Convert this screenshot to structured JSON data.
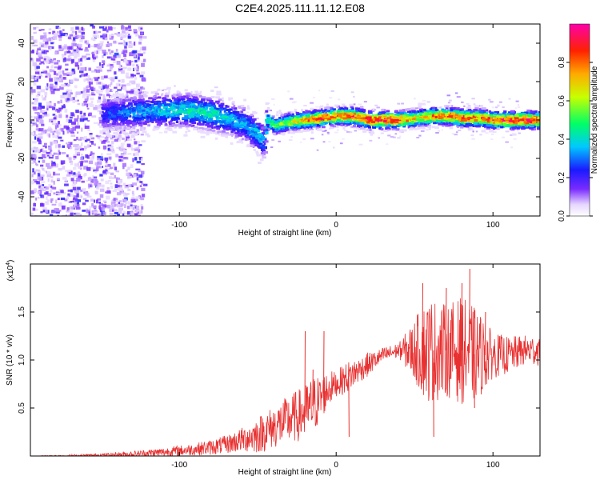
{
  "page": {
    "title": "C2E4.2025.111.11.12.E08"
  },
  "chart_data": [
    {
      "type": "heatmap",
      "xlabel": "Height of straight line (km)",
      "ylabel": "Frequency (Hz)",
      "xlim": [
        -195,
        130
      ],
      "ylim": [
        -50,
        50
      ],
      "xticks": [
        -100,
        0,
        100
      ],
      "yticks": [
        -40,
        -20,
        0,
        20,
        40
      ],
      "xtick_labels": [
        "-100",
        "0",
        "100"
      ],
      "ytick_labels": [
        "-40",
        "-20",
        "0",
        "20",
        "40"
      ],
      "colorbar": {
        "label": "Normalized spectral amplitude",
        "range": [
          0.0,
          1.0
        ],
        "ticks": [
          0.0,
          0.2,
          0.4,
          0.6,
          0.8
        ],
        "tick_labels": [
          "0.0",
          "0.2",
          "0.4",
          "0.6",
          "0.8"
        ],
        "colormap": "rainbow (white-lavender-purple-blue-cyan-green-yellow-orange-red-magenta)"
      },
      "dominant_ridge": {
        "x": [
          -150,
          -130,
          -110,
          -95,
          -80,
          -70,
          -60,
          -50,
          -47,
          -45,
          -40,
          -35,
          -30,
          -20,
          -10,
          0,
          10,
          20,
          30,
          40,
          50,
          60,
          70,
          80,
          90,
          100,
          110,
          120,
          130
        ],
        "frequency": [
          3,
          4,
          5,
          5,
          3,
          1,
          -2,
          -8,
          -12,
          0,
          -3,
          -2,
          -1,
          0,
          1,
          2,
          2,
          0,
          0,
          0,
          1,
          2,
          2,
          1,
          1,
          0,
          0,
          0,
          0
        ],
        "amplitude": [
          0.25,
          0.35,
          0.4,
          0.45,
          0.45,
          0.4,
          0.35,
          0.4,
          0.3,
          0.5,
          0.55,
          0.6,
          0.7,
          0.8,
          0.9,
          0.85,
          0.9,
          0.95,
          0.95,
          0.9,
          0.7,
          0.8,
          0.85,
          0.9,
          0.85,
          0.9,
          0.95,
          0.95,
          0.95
        ]
      }
    },
    {
      "type": "line",
      "xlabel": "Height of straight line (km)",
      "ylabel": "SNR (10 * v/v)",
      "scale_note": "(x10",
      "scale_exponent": "4",
      "xlim": [
        -195,
        130
      ],
      "ylim": [
        0,
        2.0
      ],
      "xticks": [
        -100,
        0,
        100
      ],
      "yticks": [
        0.5,
        1.0,
        1.5
      ],
      "xtick_labels": [
        "-100",
        "0",
        "100"
      ],
      "ytick_labels": [
        "0.5",
        "1.0",
        "1.5"
      ],
      "series": [
        {
          "color": "#e83030",
          "envelope_x": [
            -195,
            -170,
            -150,
            -130,
            -110,
            -90,
            -80,
            -70,
            -60,
            -50,
            -40,
            -30,
            -20,
            -15,
            -10,
            -5,
            0,
            5,
            10,
            15,
            20,
            25,
            30,
            40,
            50,
            55,
            60,
            70,
            80,
            90,
            100,
            110,
            120,
            130
          ],
          "envelope_mean": [
            0.0,
            0.0,
            0.01,
            0.02,
            0.04,
            0.07,
            0.09,
            0.12,
            0.17,
            0.22,
            0.3,
            0.38,
            0.45,
            0.52,
            0.6,
            0.7,
            0.75,
            0.8,
            0.85,
            0.9,
            0.95,
            1.0,
            1.05,
            1.1,
            1.1,
            1.1,
            1.1,
            1.1,
            1.1,
            1.05,
            1.05,
            1.05,
            1.1,
            1.1
          ],
          "envelope_spread": [
            0.0,
            0.01,
            0.01,
            0.02,
            0.03,
            0.04,
            0.05,
            0.06,
            0.08,
            0.12,
            0.14,
            0.16,
            0.18,
            0.2,
            0.15,
            0.12,
            0.08,
            0.1,
            0.1,
            0.08,
            0.08,
            0.06,
            0.05,
            0.05,
            0.2,
            0.3,
            0.35,
            0.3,
            0.35,
            0.3,
            0.15,
            0.12,
            0.1,
            0.1
          ],
          "spikes": [
            [
              -20,
              1.3
            ],
            [
              -15,
              0.9
            ],
            [
              -8,
              1.3
            ],
            [
              8,
              0.2
            ],
            [
              55,
              1.8
            ],
            [
              62,
              0.2
            ],
            [
              70,
              1.75
            ],
            [
              80,
              1.8
            ],
            [
              85,
              1.95
            ],
            [
              88,
              0.5
            ],
            [
              95,
              1.5
            ]
          ]
        }
      ]
    }
  ]
}
